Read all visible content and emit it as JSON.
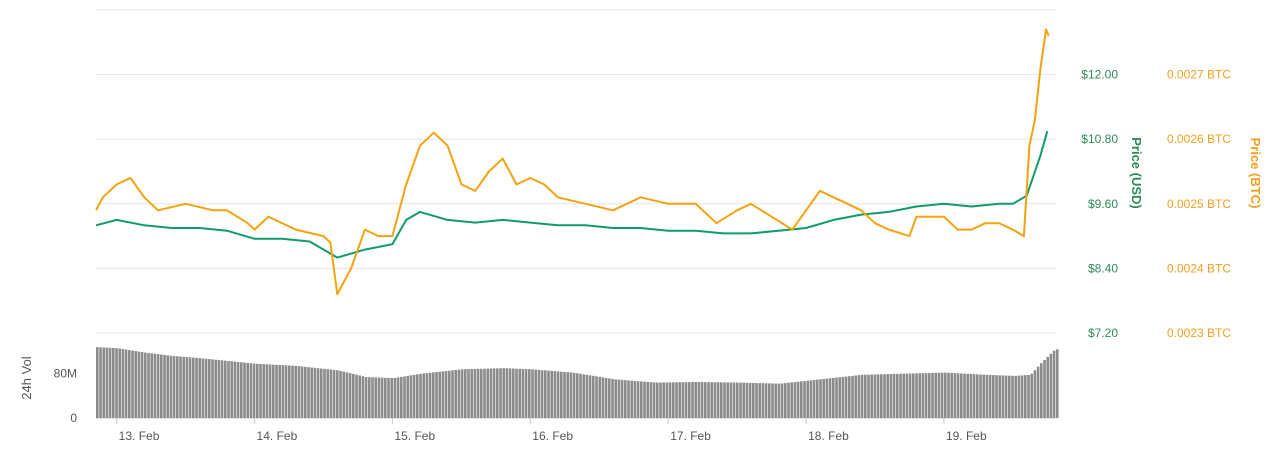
{
  "colors": {
    "usd_line": "#0f9b6e",
    "btc_line": "#f3a30f",
    "volume_bar": "#8c8c8c",
    "grid": "#e6e6e6",
    "usd_text": "#2e8b57",
    "btc_text": "#f0a020"
  },
  "chart_data": [
    {
      "type": "line",
      "title": "",
      "grid": true,
      "x_ticks": [
        "13. Feb",
        "14. Feb",
        "15. Feb",
        "16. Feb",
        "17. Feb",
        "18. Feb",
        "19. Feb"
      ],
      "y_left": {
        "label": "Price (USD)",
        "ticks": [
          "$7.20",
          "$8.40",
          "$9.60",
          "$10.80",
          "$12.00"
        ],
        "range": [
          7.2,
          13.2
        ]
      },
      "y_right": {
        "label": "Price (BTC)",
        "ticks": [
          "0.0023 BTC",
          "0.0024 BTC",
          "0.0025 BTC",
          "0.0026 BTC",
          "0.0027 BTC"
        ],
        "range": [
          0.0023,
          0.0028
        ]
      },
      "series": [
        {
          "name": "Price (USD)",
          "axis": "left",
          "x": [
            12.85,
            13.0,
            13.2,
            13.4,
            13.6,
            13.8,
            14.0,
            14.2,
            14.4,
            14.6,
            14.8,
            15.0,
            15.1,
            15.2,
            15.4,
            15.6,
            15.8,
            16.0,
            16.2,
            16.4,
            16.6,
            16.8,
            17.0,
            17.2,
            17.4,
            17.6,
            17.8,
            18.0,
            18.2,
            18.4,
            18.6,
            18.8,
            19.0,
            19.2,
            19.4,
            19.5,
            19.6,
            19.7,
            19.75
          ],
          "values": [
            9.2,
            9.3,
            9.2,
            9.15,
            9.15,
            9.1,
            8.95,
            8.95,
            8.9,
            8.6,
            8.75,
            8.85,
            9.3,
            9.45,
            9.3,
            9.25,
            9.3,
            9.25,
            9.2,
            9.2,
            9.15,
            9.15,
            9.1,
            9.1,
            9.05,
            9.05,
            9.1,
            9.15,
            9.3,
            9.4,
            9.45,
            9.55,
            9.6,
            9.55,
            9.6,
            9.6,
            9.75,
            10.5,
            10.95
          ]
        },
        {
          "name": "Price (BTC)",
          "axis": "right",
          "x": [
            12.85,
            12.9,
            13.0,
            13.1,
            13.2,
            13.3,
            13.5,
            13.7,
            13.8,
            13.95,
            14.0,
            14.1,
            14.3,
            14.5,
            14.55,
            14.6,
            14.7,
            14.8,
            14.9,
            15.0,
            15.1,
            15.2,
            15.3,
            15.4,
            15.5,
            15.6,
            15.7,
            15.8,
            15.9,
            16.0,
            16.1,
            16.2,
            16.4,
            16.6,
            16.8,
            17.0,
            17.2,
            17.35,
            17.5,
            17.6,
            17.75,
            17.9,
            18.0,
            18.1,
            18.2,
            18.3,
            18.4,
            18.5,
            18.6,
            18.75,
            18.8,
            18.9,
            19.0,
            19.1,
            19.2,
            19.3,
            19.4,
            19.5,
            19.58,
            19.62,
            19.66,
            19.7,
            19.74,
            19.76
          ],
          "values": [
            0.00249,
            0.00251,
            0.00253,
            0.00254,
            0.00251,
            0.00249,
            0.0025,
            0.00249,
            0.00249,
            0.00247,
            0.00246,
            0.00248,
            0.00246,
            0.00245,
            0.00244,
            0.00236,
            0.0024,
            0.00246,
            0.00245,
            0.00245,
            0.00253,
            0.00259,
            0.00261,
            0.00259,
            0.00253,
            0.00252,
            0.00255,
            0.00257,
            0.00253,
            0.00254,
            0.00253,
            0.00251,
            0.0025,
            0.00249,
            0.00251,
            0.0025,
            0.0025,
            0.00247,
            0.00249,
            0.0025,
            0.00248,
            0.00246,
            0.00249,
            0.00252,
            0.00251,
            0.0025,
            0.00249,
            0.00247,
            0.00246,
            0.00245,
            0.00248,
            0.00248,
            0.00248,
            0.00246,
            0.00246,
            0.00247,
            0.00247,
            0.00246,
            0.00245,
            0.00259,
            0.00263,
            0.00271,
            0.00277,
            0.00276
          ]
        }
      ]
    },
    {
      "type": "bar",
      "title": "",
      "y_label": "24h Vol",
      "y_ticks": [
        "0",
        "80M"
      ],
      "range": [
        0,
        130
      ],
      "unit": "M",
      "x": [
        12.85,
        13.0,
        13.2,
        13.4,
        13.6,
        13.8,
        14.0,
        14.3,
        14.6,
        14.8,
        15.0,
        15.2,
        15.5,
        15.8,
        16.0,
        16.3,
        16.6,
        16.9,
        17.2,
        17.5,
        17.8,
        18.1,
        18.4,
        18.7,
        19.0,
        19.3,
        19.5,
        19.62,
        19.7,
        19.8
      ],
      "values": [
        128,
        126,
        118,
        112,
        108,
        103,
        98,
        94,
        86,
        74,
        72,
        80,
        88,
        90,
        88,
        82,
        70,
        64,
        65,
        64,
        62,
        70,
        78,
        80,
        82,
        78,
        76,
        78,
        100,
        124
      ]
    }
  ]
}
